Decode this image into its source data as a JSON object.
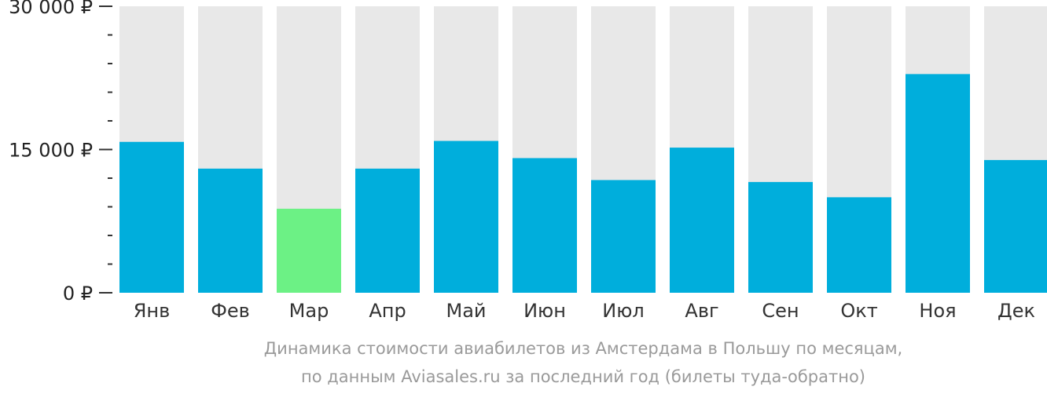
{
  "chart_data": {
    "type": "bar",
    "categories": [
      "Янв",
      "Фев",
      "Мар",
      "Апр",
      "Май",
      "Июн",
      "Июл",
      "Авг",
      "Сен",
      "Окт",
      "Ноя",
      "Дек"
    ],
    "values": [
      15800,
      13000,
      8800,
      13000,
      15900,
      14100,
      11800,
      15200,
      11600,
      10000,
      22900,
      13900
    ],
    "highlight_index": 2,
    "ylim": [
      0,
      30000
    ],
    "major_ticks": [
      0,
      15000,
      30000
    ],
    "tick_labels": [
      "0 ₽",
      "15 000 ₽",
      "30 000 ₽"
    ],
    "minor_ticks_per_interval": 5,
    "colors": {
      "bar": "#00aedc",
      "highlight": "#6cf185",
      "background_bar": "#e8e8e8",
      "axis": "#333333",
      "caption": "#9a9a9a"
    },
    "grid": false,
    "legend": "none"
  },
  "caption": {
    "line1": "Динамика стоимости авиабилетов из Амстердама в Польшу по месяцам,",
    "line2": "по данным Aviasales.ru за последний год (билеты туда-обратно)"
  }
}
